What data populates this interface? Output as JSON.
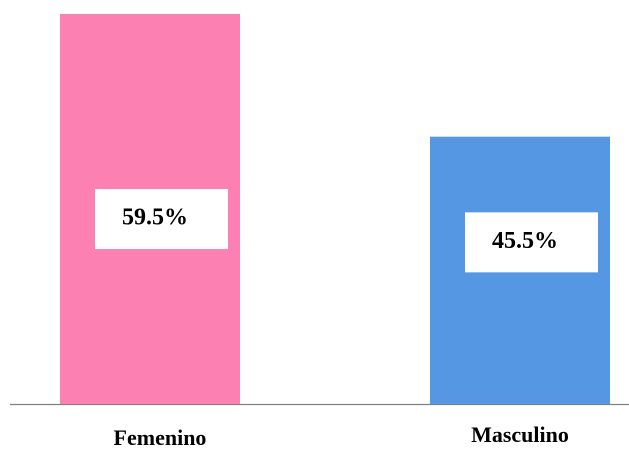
{
  "chart_data": {
    "type": "bar",
    "categories": [
      "Femenino",
      "Masculino"
    ],
    "values": [
      59.5,
      45.5
    ],
    "value_labels": [
      "59.5%",
      "45.5%"
    ],
    "colors": [
      "#fc80b2",
      "#5597e3"
    ],
    "ylim": [
      15,
      59.5
    ]
  }
}
